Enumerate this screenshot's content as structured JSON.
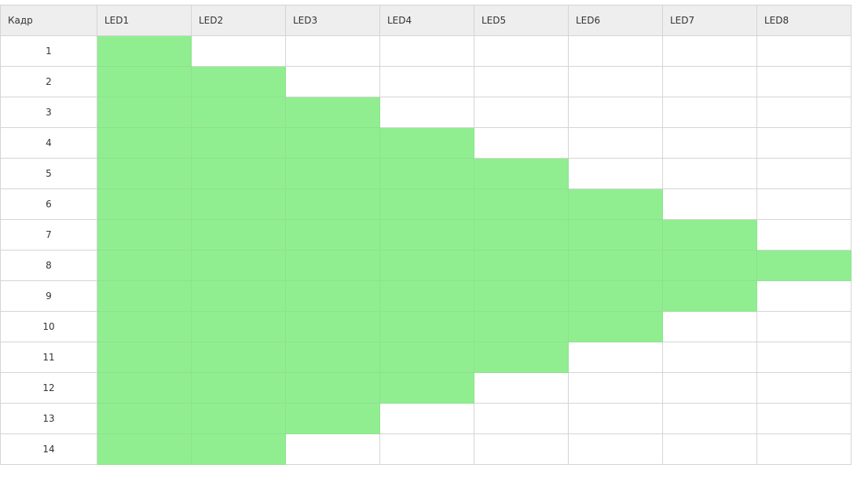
{
  "table": {
    "headers": [
      "Кадр",
      "LED1",
      "LED2",
      "LED3",
      "LED4",
      "LED5",
      "LED6",
      "LED7",
      "LED8"
    ],
    "on_color": "#90ee90",
    "off_color": "#ffffff",
    "rows": [
      {
        "frame": "1",
        "leds": [
          1,
          0,
          0,
          0,
          0,
          0,
          0,
          0
        ]
      },
      {
        "frame": "2",
        "leds": [
          1,
          1,
          0,
          0,
          0,
          0,
          0,
          0
        ]
      },
      {
        "frame": "3",
        "leds": [
          1,
          1,
          1,
          0,
          0,
          0,
          0,
          0
        ]
      },
      {
        "frame": "4",
        "leds": [
          1,
          1,
          1,
          1,
          0,
          0,
          0,
          0
        ]
      },
      {
        "frame": "5",
        "leds": [
          1,
          1,
          1,
          1,
          1,
          0,
          0,
          0
        ]
      },
      {
        "frame": "6",
        "leds": [
          1,
          1,
          1,
          1,
          1,
          1,
          0,
          0
        ]
      },
      {
        "frame": "7",
        "leds": [
          1,
          1,
          1,
          1,
          1,
          1,
          1,
          0
        ]
      },
      {
        "frame": "8",
        "leds": [
          1,
          1,
          1,
          1,
          1,
          1,
          1,
          1
        ]
      },
      {
        "frame": "9",
        "leds": [
          1,
          1,
          1,
          1,
          1,
          1,
          1,
          0
        ]
      },
      {
        "frame": "10",
        "leds": [
          1,
          1,
          1,
          1,
          1,
          1,
          0,
          0
        ]
      },
      {
        "frame": "11",
        "leds": [
          1,
          1,
          1,
          1,
          1,
          0,
          0,
          0
        ]
      },
      {
        "frame": "12",
        "leds": [
          1,
          1,
          1,
          1,
          0,
          0,
          0,
          0
        ]
      },
      {
        "frame": "13",
        "leds": [
          1,
          1,
          1,
          0,
          0,
          0,
          0,
          0
        ]
      },
      {
        "frame": "14",
        "leds": [
          1,
          1,
          0,
          0,
          0,
          0,
          0,
          0
        ]
      }
    ]
  }
}
